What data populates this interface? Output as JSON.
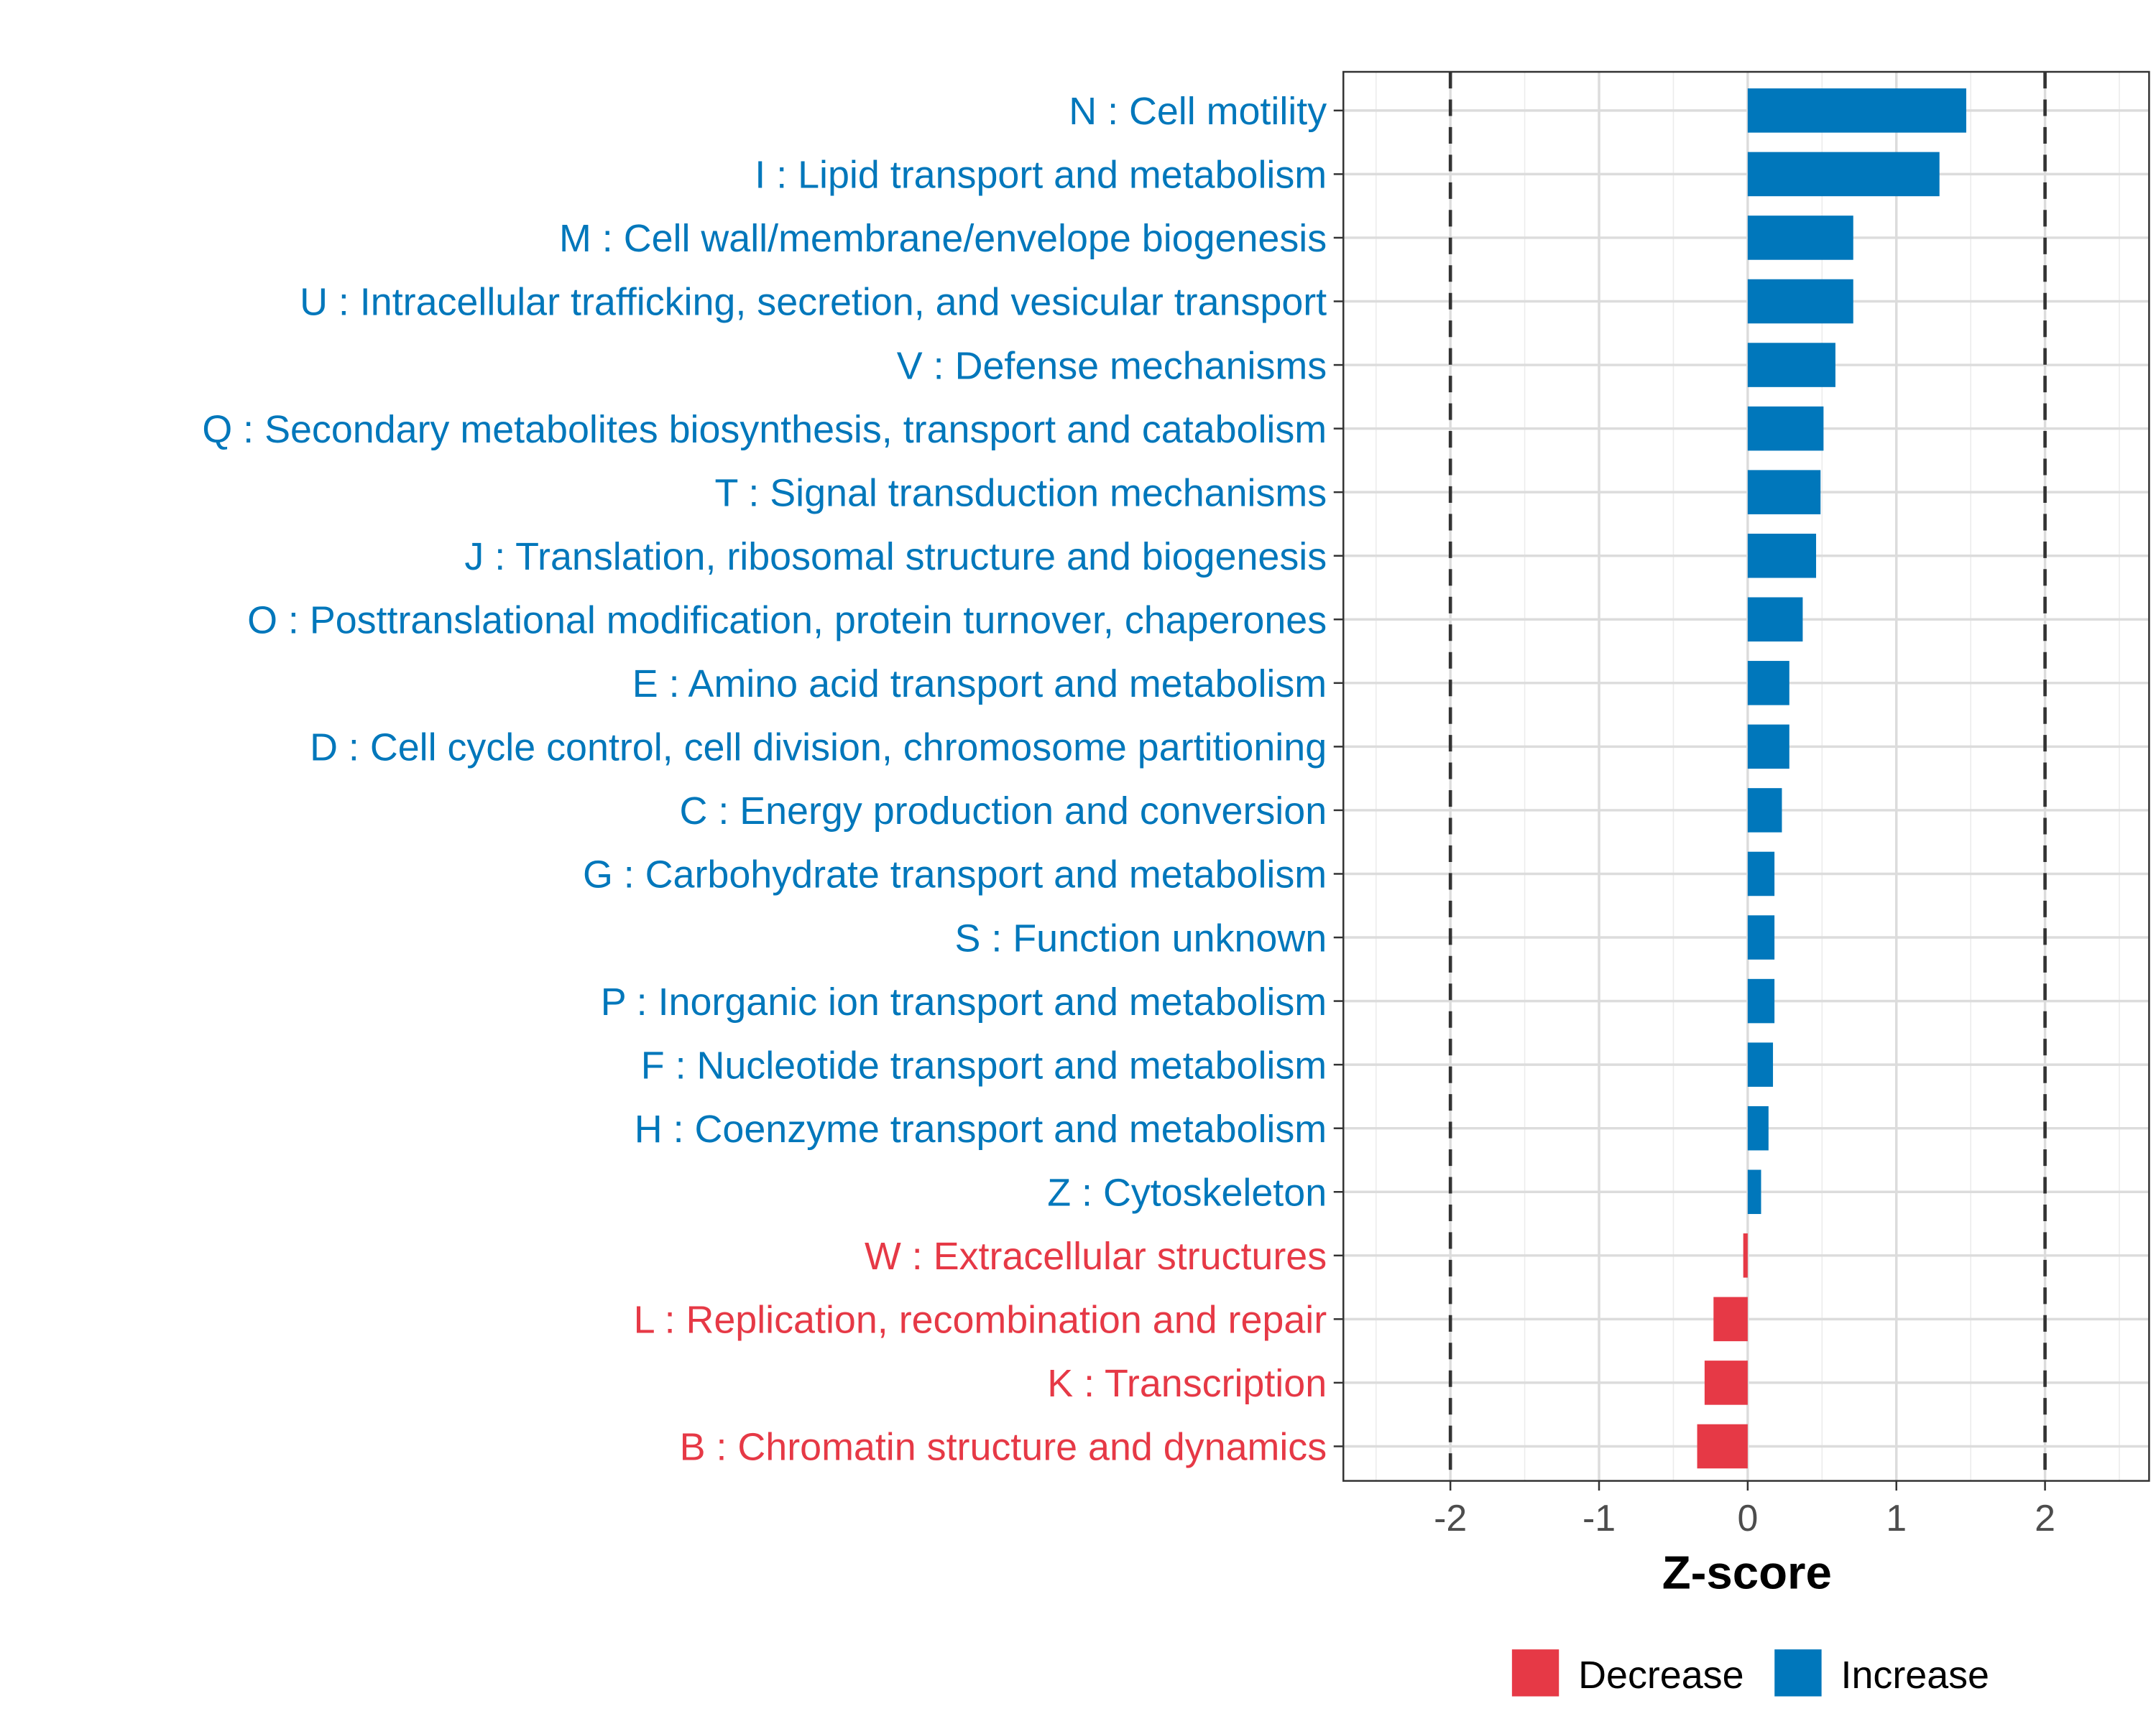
{
  "chart_data": {
    "type": "bar",
    "orientation": "horizontal",
    "title": "",
    "xlabel": "Z-score",
    "ylabel": "",
    "xlim": [
      -2.72,
      2.7
    ],
    "xticks": [
      -2,
      -1,
      0,
      1,
      2
    ],
    "xtick_labels": [
      "-2",
      "-1",
      "0",
      "1",
      "2"
    ],
    "reference_lines": [
      -2,
      2
    ],
    "grid": true,
    "colors": {
      "Increase": "#0077BB",
      "Decrease": "#E63946"
    },
    "categories": [
      "N : Cell motility",
      "I : Lipid transport and metabolism",
      "M : Cell wall/membrane/envelope biogenesis",
      "U : Intracellular trafficking, secretion, and vesicular transport",
      "V : Defense mechanisms",
      "Q : Secondary metabolites biosynthesis, transport and catabolism",
      "T : Signal transduction mechanisms",
      "J : Translation, ribosomal structure and biogenesis",
      "O : Posttranslational modification, protein turnover, chaperones",
      "E : Amino acid transport and metabolism",
      "D : Cell cycle control, cell division, chromosome partitioning",
      "C : Energy production and conversion",
      "G : Carbohydrate transport and metabolism",
      "S : Function unknown",
      "P : Inorganic ion transport and metabolism",
      "F : Nucleotide transport and metabolism",
      "H : Coenzyme transport and metabolism",
      "Z : Cytoskeleton",
      "W : Extracellular structures",
      "L : Replication, recombination and repair",
      "K : Transcription",
      "B : Chromatin structure and dynamics"
    ],
    "values": [
      1.47,
      1.29,
      0.71,
      0.71,
      0.59,
      0.51,
      0.49,
      0.46,
      0.37,
      0.28,
      0.28,
      0.23,
      0.18,
      0.18,
      0.18,
      0.17,
      0.14,
      0.09,
      -0.03,
      -0.23,
      -0.29,
      -0.34
    ],
    "legend": {
      "placement": "bottom",
      "entries": [
        "Decrease",
        "Increase"
      ]
    }
  }
}
